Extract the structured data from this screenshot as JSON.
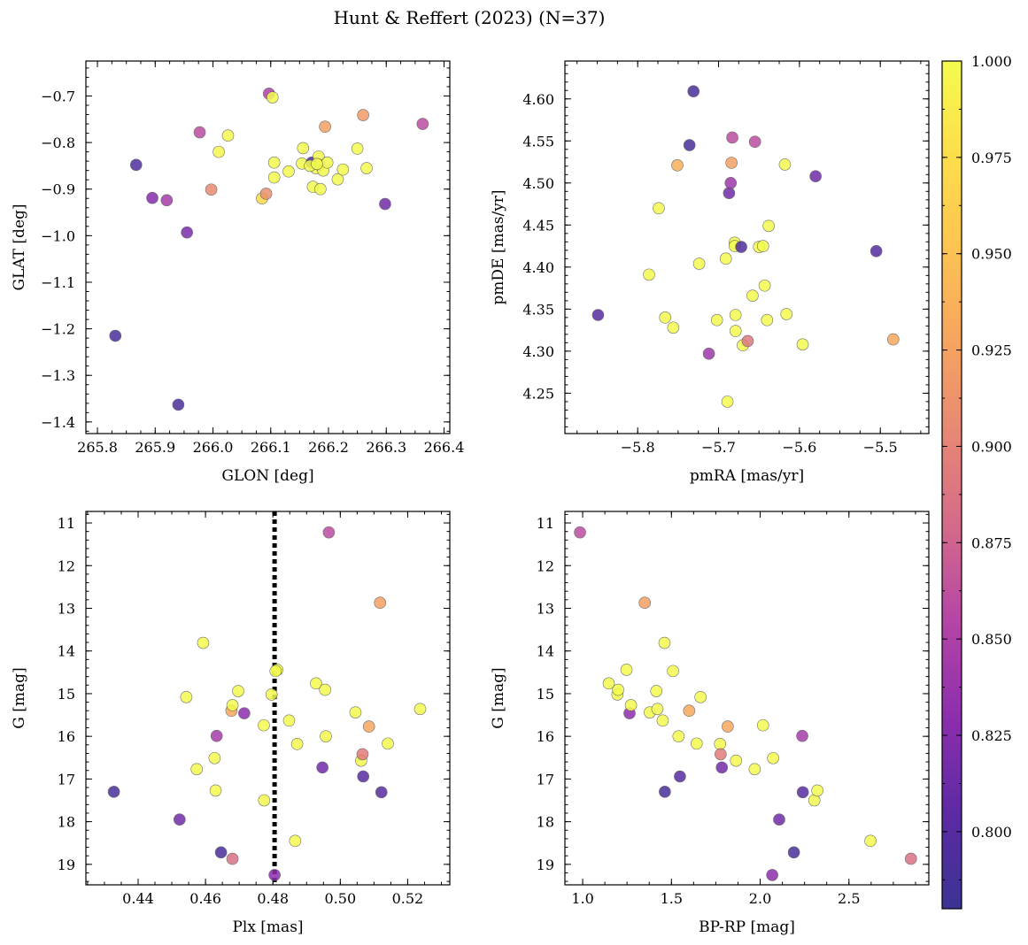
{
  "title": "Hunt & Reffert (2023) (N=37)",
  "colorbar": {
    "min": 0.78,
    "max": 1.0,
    "ticks": [
      0.8,
      0.825,
      0.85,
      0.875,
      0.9,
      0.925,
      0.95,
      0.975,
      1.0
    ],
    "tick_labels": [
      "0.800",
      "0.825",
      "0.850",
      "0.875",
      "0.900",
      "0.925",
      "0.950",
      "0.975",
      "1.000"
    ],
    "colormap": "plasma"
  },
  "chart_data": [
    {
      "type": "scatter",
      "xlabel": "GLON [deg]",
      "ylabel": "GLAT [deg]",
      "xlim": [
        265.78,
        266.41
      ],
      "ylim": [
        -1.425,
        -0.625
      ],
      "xticks": [
        265.8,
        265.9,
        266.0,
        266.1,
        266.2,
        266.3,
        266.4
      ],
      "xtick_labels": [
        "265.8",
        "265.9",
        "266.0",
        "266.1",
        "266.2",
        "266.3",
        "266.4"
      ],
      "yticks": [
        -1.4,
        -1.3,
        -1.2,
        -1.1,
        -1.0,
        -0.9,
        -0.8,
        -0.7
      ],
      "ytick_labels": [
        "−1.4",
        "−1.3",
        "−1.2",
        "−1.1",
        "−1.0",
        "−0.9",
        "−0.8",
        "−0.7"
      ],
      "invert_y": false,
      "points": [
        {
          "x": 265.831,
          "y": -1.215,
          "c": 0.79
        },
        {
          "x": 265.867,
          "y": -0.848,
          "c": 0.795
        },
        {
          "x": 265.895,
          "y": -0.919,
          "c": 0.825
        },
        {
          "x": 265.92,
          "y": -0.924,
          "c": 0.845
        },
        {
          "x": 265.94,
          "y": -1.363,
          "c": 0.79
        },
        {
          "x": 265.955,
          "y": -0.993,
          "c": 0.82
        },
        {
          "x": 265.977,
          "y": -0.778,
          "c": 0.86
        },
        {
          "x": 265.997,
          "y": -0.901,
          "c": 0.905
        },
        {
          "x": 266.01,
          "y": -0.82,
          "c": 0.995
        },
        {
          "x": 266.026,
          "y": -0.785,
          "c": 1.0
        },
        {
          "x": 266.085,
          "y": -0.92,
          "c": 0.97
        },
        {
          "x": 266.092,
          "y": -0.91,
          "c": 0.91
        },
        {
          "x": 266.097,
          "y": -0.695,
          "c": 0.85
        },
        {
          "x": 266.103,
          "y": -0.703,
          "c": 1.0
        },
        {
          "x": 266.106,
          "y": -0.843,
          "c": 1.0
        },
        {
          "x": 266.106,
          "y": -0.875,
          "c": 1.0
        },
        {
          "x": 266.131,
          "y": -0.862,
          "c": 1.0
        },
        {
          "x": 266.154,
          "y": -0.845,
          "c": 1.0
        },
        {
          "x": 266.156,
          "y": -0.812,
          "c": 1.0
        },
        {
          "x": 266.171,
          "y": -0.843,
          "c": 0.79
        },
        {
          "x": 266.173,
          "y": -0.895,
          "c": 1.0
        },
        {
          "x": 266.178,
          "y": -0.855,
          "c": 1.0
        },
        {
          "x": 266.183,
          "y": -0.83,
          "c": 1.0
        },
        {
          "x": 266.184,
          "y": -0.848,
          "c": 1.0
        },
        {
          "x": 266.186,
          "y": -0.9,
          "c": 1.0
        },
        {
          "x": 266.191,
          "y": -0.86,
          "c": 1.0
        },
        {
          "x": 266.194,
          "y": -0.766,
          "c": 0.925
        },
        {
          "x": 266.198,
          "y": -0.843,
          "c": 1.0
        },
        {
          "x": 266.216,
          "y": -0.879,
          "c": 1.0
        },
        {
          "x": 266.225,
          "y": -0.858,
          "c": 1.0
        },
        {
          "x": 266.25,
          "y": -0.813,
          "c": 1.0
        },
        {
          "x": 266.26,
          "y": -0.741,
          "c": 0.92
        },
        {
          "x": 266.266,
          "y": -0.855,
          "c": 1.0
        },
        {
          "x": 266.298,
          "y": -0.932,
          "c": 0.815
        },
        {
          "x": 266.363,
          "y": -0.76,
          "c": 0.86
        },
        {
          "x": 266.168,
          "y": -0.85,
          "c": 1.0
        },
        {
          "x": 266.18,
          "y": -0.846,
          "c": 1.0
        }
      ]
    },
    {
      "type": "scatter",
      "xlabel": "pmRA [mas/yr]",
      "ylabel": "pmDE [mas/yr]",
      "xlim": [
        -5.89,
        -5.44
      ],
      "ylim": [
        4.202,
        4.645
      ],
      "xticks": [
        -5.8,
        -5.7,
        -5.6,
        -5.5
      ],
      "xtick_labels": [
        "−5.8",
        "−5.7",
        "−5.6",
        "−5.5"
      ],
      "yticks": [
        4.25,
        4.3,
        4.35,
        4.4,
        4.45,
        4.5,
        4.55,
        4.6
      ],
      "ytick_labels": [
        "4.25",
        "4.30",
        "4.35",
        "4.40",
        "4.45",
        "4.50",
        "4.55",
        "4.60"
      ],
      "invert_y": false,
      "points": [
        {
          "x": -5.849,
          "y": 4.343,
          "c": 0.8
        },
        {
          "x": -5.786,
          "y": 4.391,
          "c": 1.0
        },
        {
          "x": -5.774,
          "y": 4.47,
          "c": 1.0
        },
        {
          "x": -5.766,
          "y": 4.34,
          "c": 1.0
        },
        {
          "x": -5.756,
          "y": 4.328,
          "c": 1.0
        },
        {
          "x": -5.751,
          "y": 4.521,
          "c": 0.935
        },
        {
          "x": -5.736,
          "y": 4.545,
          "c": 0.79
        },
        {
          "x": -5.731,
          "y": 4.609,
          "c": 0.79
        },
        {
          "x": -5.724,
          "y": 4.404,
          "c": 1.0
        },
        {
          "x": -5.712,
          "y": 4.297,
          "c": 0.84
        },
        {
          "x": -5.702,
          "y": 4.337,
          "c": 1.0
        },
        {
          "x": -5.691,
          "y": 4.41,
          "c": 1.0
        },
        {
          "x": -5.689,
          "y": 4.24,
          "c": 1.0
        },
        {
          "x": -5.687,
          "y": 4.488,
          "c": 0.815
        },
        {
          "x": -5.685,
          "y": 4.5,
          "c": 0.84
        },
        {
          "x": -5.684,
          "y": 4.524,
          "c": 0.925
        },
        {
          "x": -5.683,
          "y": 4.554,
          "c": 0.86
        },
        {
          "x": -5.68,
          "y": 4.429,
          "c": 1.0
        },
        {
          "x": -5.679,
          "y": 4.343,
          "c": 1.0
        },
        {
          "x": -5.679,
          "y": 4.324,
          "c": 1.0
        },
        {
          "x": -5.68,
          "y": 4.425,
          "c": 1.0
        },
        {
          "x": -5.672,
          "y": 4.424,
          "c": 0.795
        },
        {
          "x": -5.67,
          "y": 4.307,
          "c": 1.0
        },
        {
          "x": -5.664,
          "y": 4.312,
          "c": 0.89
        },
        {
          "x": -5.658,
          "y": 4.366,
          "c": 1.0
        },
        {
          "x": -5.655,
          "y": 4.549,
          "c": 0.86
        },
        {
          "x": -5.65,
          "y": 4.424,
          "c": 1.0
        },
        {
          "x": -5.645,
          "y": 4.425,
          "c": 1.0
        },
        {
          "x": -5.643,
          "y": 4.378,
          "c": 1.0
        },
        {
          "x": -5.64,
          "y": 4.337,
          "c": 1.0
        },
        {
          "x": -5.638,
          "y": 4.449,
          "c": 1.0
        },
        {
          "x": -5.618,
          "y": 4.522,
          "c": 1.0
        },
        {
          "x": -5.616,
          "y": 4.344,
          "c": 1.0
        },
        {
          "x": -5.596,
          "y": 4.308,
          "c": 1.0
        },
        {
          "x": -5.58,
          "y": 4.508,
          "c": 0.815
        },
        {
          "x": -5.505,
          "y": 4.419,
          "c": 0.8
        },
        {
          "x": -5.484,
          "y": 4.314,
          "c": 0.93
        }
      ]
    },
    {
      "type": "scatter",
      "xlabel": "Plx [mas]",
      "ylabel": "G [mag]",
      "xlim": [
        0.4245,
        0.5325
      ],
      "ylim": [
        19.48,
        10.73
      ],
      "xticks": [
        0.44,
        0.46,
        0.48,
        0.5,
        0.52
      ],
      "xtick_labels": [
        "0.44",
        "0.46",
        "0.48",
        "0.50",
        "0.52"
      ],
      "yticks": [
        11,
        12,
        13,
        14,
        15,
        16,
        17,
        18,
        19
      ],
      "ytick_labels": [
        "11",
        "12",
        "13",
        "14",
        "15",
        "16",
        "17",
        "18",
        "19"
      ],
      "invert_y": true,
      "vline": {
        "x": 0.4805,
        "style": "dotted"
      },
      "points": [
        {
          "x": 0.4328,
          "y": 17.3,
          "c": 0.79
        },
        {
          "x": 0.4523,
          "y": 17.95,
          "c": 0.815
        },
        {
          "x": 0.4543,
          "y": 15.08,
          "c": 1.0
        },
        {
          "x": 0.4574,
          "y": 16.77,
          "c": 1.0
        },
        {
          "x": 0.4593,
          "y": 13.81,
          "c": 1.0
        },
        {
          "x": 0.4627,
          "y": 16.51,
          "c": 1.0
        },
        {
          "x": 0.463,
          "y": 17.27,
          "c": 1.0
        },
        {
          "x": 0.4633,
          "y": 15.99,
          "c": 0.845
        },
        {
          "x": 0.4646,
          "y": 18.72,
          "c": 0.79
        },
        {
          "x": 0.4677,
          "y": 15.4,
          "c": 0.93
        },
        {
          "x": 0.468,
          "y": 15.27,
          "c": 1.0
        },
        {
          "x": 0.468,
          "y": 18.87,
          "c": 0.885
        },
        {
          "x": 0.4697,
          "y": 14.94,
          "c": 1.0
        },
        {
          "x": 0.4715,
          "y": 15.46,
          "c": 0.83
        },
        {
          "x": 0.4773,
          "y": 15.74,
          "c": 1.0
        },
        {
          "x": 0.4774,
          "y": 17.5,
          "c": 1.0
        },
        {
          "x": 0.4796,
          "y": 15.02,
          "c": 1.0
        },
        {
          "x": 0.4805,
          "y": 19.25,
          "c": 0.83
        },
        {
          "x": 0.4813,
          "y": 14.44,
          "c": 1.0
        },
        {
          "x": 0.4848,
          "y": 15.63,
          "c": 1.0
        },
        {
          "x": 0.4866,
          "y": 18.45,
          "c": 1.0
        },
        {
          "x": 0.4872,
          "y": 16.18,
          "c": 1.0
        },
        {
          "x": 0.4928,
          "y": 14.76,
          "c": 1.0
        },
        {
          "x": 0.4947,
          "y": 16.73,
          "c": 0.815
        },
        {
          "x": 0.4955,
          "y": 14.91,
          "c": 1.0
        },
        {
          "x": 0.4957,
          "y": 16.0,
          "c": 1.0
        },
        {
          "x": 0.4966,
          "y": 11.22,
          "c": 0.86
        },
        {
          "x": 0.5045,
          "y": 15.44,
          "c": 1.0
        },
        {
          "x": 0.5062,
          "y": 16.57,
          "c": 1.0
        },
        {
          "x": 0.5066,
          "y": 16.42,
          "c": 0.895
        },
        {
          "x": 0.5068,
          "y": 16.94,
          "c": 0.8
        },
        {
          "x": 0.5085,
          "y": 15.77,
          "c": 0.93
        },
        {
          "x": 0.5118,
          "y": 12.87,
          "c": 0.925
        },
        {
          "x": 0.5122,
          "y": 17.31,
          "c": 0.8
        },
        {
          "x": 0.5141,
          "y": 16.17,
          "c": 1.0
        },
        {
          "x": 0.5237,
          "y": 15.36,
          "c": 1.0
        },
        {
          "x": 0.4808,
          "y": 14.47,
          "c": 1.0
        }
      ]
    },
    {
      "type": "scatter",
      "xlabel": "BP-RP [mag]",
      "ylabel": "G [mag]",
      "xlim": [
        0.9,
        2.95
      ],
      "ylim": [
        19.48,
        10.73
      ],
      "xticks": [
        1.0,
        1.5,
        2.0,
        2.5
      ],
      "xtick_labels": [
        "1.0",
        "1.5",
        "2.0",
        "2.5"
      ],
      "yticks": [
        11,
        12,
        13,
        14,
        15,
        16,
        17,
        18,
        19
      ],
      "ytick_labels": [
        "11",
        "12",
        "13",
        "14",
        "15",
        "16",
        "17",
        "18",
        "19"
      ],
      "invert_y": true,
      "points": [
        {
          "x": 0.985,
          "y": 11.22,
          "c": 0.86
        },
        {
          "x": 1.147,
          "y": 14.76,
          "c": 1.0
        },
        {
          "x": 1.196,
          "y": 15.02,
          "c": 1.0
        },
        {
          "x": 1.2,
          "y": 14.91,
          "c": 1.0
        },
        {
          "x": 1.247,
          "y": 14.44,
          "c": 1.0
        },
        {
          "x": 1.264,
          "y": 15.46,
          "c": 0.83
        },
        {
          "x": 1.272,
          "y": 15.27,
          "c": 1.0
        },
        {
          "x": 1.35,
          "y": 12.87,
          "c": 0.925
        },
        {
          "x": 1.378,
          "y": 15.44,
          "c": 1.0
        },
        {
          "x": 1.415,
          "y": 14.94,
          "c": 1.0
        },
        {
          "x": 1.421,
          "y": 15.36,
          "c": 1.0
        },
        {
          "x": 1.451,
          "y": 15.63,
          "c": 1.0
        },
        {
          "x": 1.461,
          "y": 13.81,
          "c": 1.0
        },
        {
          "x": 1.463,
          "y": 17.3,
          "c": 0.79
        },
        {
          "x": 1.509,
          "y": 14.47,
          "c": 1.0
        },
        {
          "x": 1.54,
          "y": 16.0,
          "c": 1.0
        },
        {
          "x": 1.548,
          "y": 16.94,
          "c": 0.8
        },
        {
          "x": 1.6,
          "y": 15.4,
          "c": 0.93
        },
        {
          "x": 1.642,
          "y": 16.17,
          "c": 1.0
        },
        {
          "x": 1.664,
          "y": 15.08,
          "c": 1.0
        },
        {
          "x": 1.774,
          "y": 16.18,
          "c": 1.0
        },
        {
          "x": 1.777,
          "y": 16.42,
          "c": 0.895
        },
        {
          "x": 1.784,
          "y": 16.73,
          "c": 0.815
        },
        {
          "x": 1.817,
          "y": 15.77,
          "c": 0.93
        },
        {
          "x": 1.864,
          "y": 16.57,
          "c": 1.0
        },
        {
          "x": 1.969,
          "y": 16.77,
          "c": 1.0
        },
        {
          "x": 2.016,
          "y": 15.74,
          "c": 1.0
        },
        {
          "x": 2.068,
          "y": 19.25,
          "c": 0.83
        },
        {
          "x": 2.073,
          "y": 16.51,
          "c": 1.0
        },
        {
          "x": 2.107,
          "y": 17.95,
          "c": 0.815
        },
        {
          "x": 2.19,
          "y": 18.72,
          "c": 0.79
        },
        {
          "x": 2.237,
          "y": 15.99,
          "c": 0.845
        },
        {
          "x": 2.24,
          "y": 17.31,
          "c": 0.8
        },
        {
          "x": 2.305,
          "y": 17.5,
          "c": 1.0
        },
        {
          "x": 2.322,
          "y": 17.27,
          "c": 1.0
        },
        {
          "x": 2.621,
          "y": 18.45,
          "c": 1.0
        },
        {
          "x": 2.849,
          "y": 18.87,
          "c": 0.885
        }
      ]
    }
  ]
}
